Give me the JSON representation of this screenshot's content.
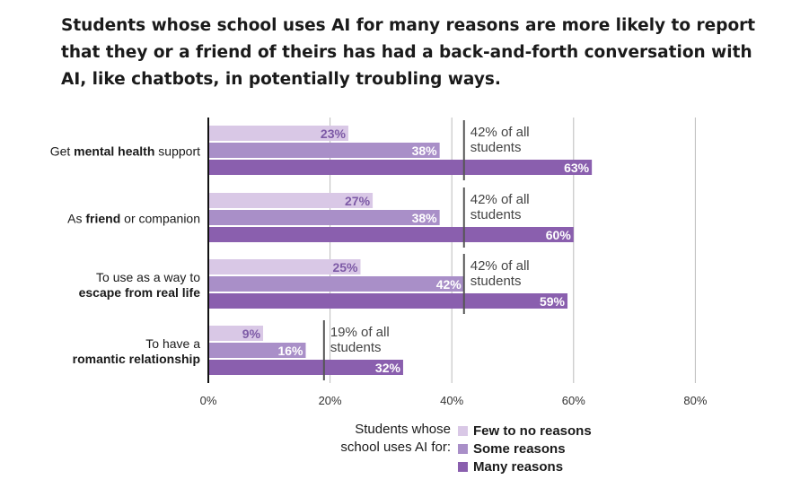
{
  "title": "Students whose school uses AI for many reasons are more likely to report that they or a friend of theirs has had a back-and-forth conversation with AI, like chatbots, in potentially troubling ways.",
  "colors": {
    "few": "#d9c8e6",
    "some": "#a98fc8",
    "many": "#8a5fae",
    "label_dark": "#7d5aa6",
    "ref_line": "#555555",
    "grid": "#bbbbbb"
  },
  "legend": {
    "heading_line1": "Students whose",
    "heading_line2": "school uses AI for:",
    "items": [
      {
        "key": "few",
        "label": "Few to no reasons"
      },
      {
        "key": "some",
        "label": "Some reasons"
      },
      {
        "key": "many",
        "label": "Many reasons"
      }
    ]
  },
  "chart_data": {
    "type": "bar",
    "orientation": "horizontal",
    "xlim": [
      0,
      80
    ],
    "ticks": [
      0,
      20,
      40,
      60,
      80
    ],
    "tick_labels": [
      "0%",
      "20%",
      "40%",
      "60%",
      "80%"
    ],
    "grid": true,
    "series": [
      {
        "key": "few",
        "name": "Few to no reasons"
      },
      {
        "key": "some",
        "name": "Some reasons"
      },
      {
        "key": "many",
        "name": "Many reasons"
      }
    ],
    "categories": [
      {
        "label_parts": [
          [
            {
              "t": "Get ",
              "b": false
            },
            {
              "t": "mental health",
              "b": true
            },
            {
              "t": " support",
              "b": false
            }
          ]
        ],
        "values": [
          23,
          38,
          63
        ],
        "value_labels": [
          "23%",
          "38%",
          "63%"
        ],
        "reference": 42,
        "reference_label": [
          "42% of all",
          "students"
        ]
      },
      {
        "label_parts": [
          [
            {
              "t": "As ",
              "b": false
            },
            {
              "t": "friend",
              "b": true
            },
            {
              "t": " or companion",
              "b": false
            }
          ]
        ],
        "values": [
          27,
          38,
          60
        ],
        "value_labels": [
          "27%",
          "38%",
          "60%"
        ],
        "reference": 42,
        "reference_label": [
          "42% of all",
          "students"
        ]
      },
      {
        "label_parts": [
          [
            {
              "t": "To use as a way to",
              "b": false
            }
          ],
          [
            {
              "t": "escape from real life",
              "b": true
            }
          ]
        ],
        "values": [
          25,
          42,
          59
        ],
        "value_labels": [
          "25%",
          "42%",
          "59%"
        ],
        "reference": 42,
        "reference_label": [
          "42% of all",
          "students"
        ]
      },
      {
        "label_parts": [
          [
            {
              "t": "To have a",
              "b": false
            }
          ],
          [
            {
              "t": "romantic relationship",
              "b": true
            }
          ]
        ],
        "values": [
          9,
          16,
          32
        ],
        "value_labels": [
          "9%",
          "16%",
          "32%"
        ],
        "reference": 19,
        "reference_label": [
          "19% of all",
          "students"
        ]
      }
    ]
  }
}
